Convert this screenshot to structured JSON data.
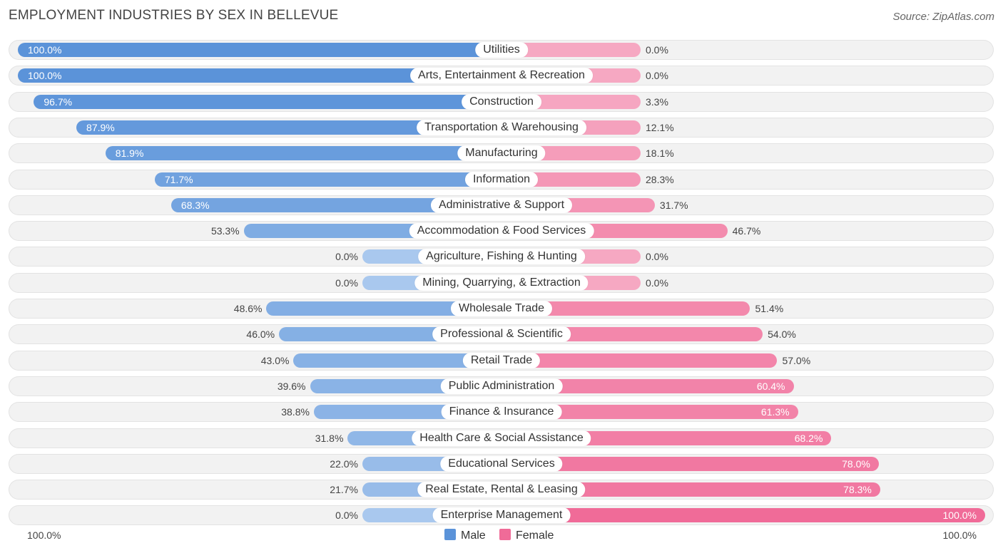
{
  "title": "EMPLOYMENT INDUSTRIES BY SEX IN BELLEVUE",
  "source": "Source: ZipAtlas.com",
  "colors": {
    "male": "#5b93d9",
    "male_light": "#a9c8ee",
    "female": "#f06b98",
    "female_light": "#f6a8c2",
    "row_bg": "#f2f2f2"
  },
  "chart_data": {
    "type": "bar",
    "orientation": "horizontal-diverging",
    "title": "EMPLOYMENT INDUSTRIES BY SEX IN BELLEVUE",
    "axis_left_label": "100.0%",
    "axis_right_label": "100.0%",
    "legend": [
      {
        "name": "Male",
        "color": "#5b93d9"
      },
      {
        "name": "Female",
        "color": "#f06b98"
      }
    ],
    "categories": [
      "Utilities",
      "Arts, Entertainment & Recreation",
      "Construction",
      "Transportation & Warehousing",
      "Manufacturing",
      "Information",
      "Administrative & Support",
      "Accommodation & Food Services",
      "Agriculture, Fishing & Hunting",
      "Mining, Quarrying, & Extraction",
      "Wholesale Trade",
      "Professional & Scientific",
      "Retail Trade",
      "Public Administration",
      "Finance & Insurance",
      "Health Care & Social Assistance",
      "Educational Services",
      "Real Estate, Rental & Leasing",
      "Enterprise Management"
    ],
    "series": [
      {
        "name": "Male",
        "values": [
          100.0,
          100.0,
          96.7,
          87.9,
          81.9,
          71.7,
          68.3,
          53.3,
          0.0,
          0.0,
          48.6,
          46.0,
          43.0,
          39.6,
          38.8,
          31.8,
          22.0,
          21.7,
          0.0
        ],
        "labels": [
          "100.0%",
          "100.0%",
          "96.7%",
          "87.9%",
          "81.9%",
          "71.7%",
          "68.3%",
          "53.3%",
          "0.0%",
          "0.0%",
          "48.6%",
          "46.0%",
          "43.0%",
          "39.6%",
          "38.8%",
          "31.8%",
          "22.0%",
          "21.7%",
          "0.0%"
        ]
      },
      {
        "name": "Female",
        "values": [
          0.0,
          0.0,
          3.3,
          12.1,
          18.1,
          28.3,
          31.7,
          46.7,
          0.0,
          0.0,
          51.4,
          54.0,
          57.0,
          60.4,
          61.3,
          68.2,
          78.0,
          78.3,
          100.0
        ],
        "labels": [
          "0.0%",
          "0.0%",
          "3.3%",
          "12.1%",
          "18.1%",
          "28.3%",
          "31.7%",
          "46.7%",
          "0.0%",
          "0.0%",
          "51.4%",
          "54.0%",
          "57.0%",
          "60.4%",
          "61.3%",
          "68.2%",
          "78.0%",
          "78.3%",
          "100.0%"
        ]
      }
    ],
    "xlim": [
      -100,
      100
    ]
  }
}
